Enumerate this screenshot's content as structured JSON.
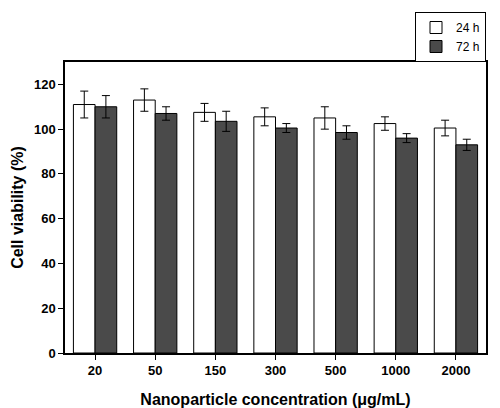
{
  "chart_data": {
    "type": "bar",
    "x_label": "Nanoparticle concentration (μg/mL)",
    "y_label": "Cell viability (%)",
    "categories": [
      "20",
      "50",
      "150",
      "300",
      "500",
      "1000",
      "2000"
    ],
    "series": [
      {
        "name": "24 h",
        "color": "#ffffff",
        "values": [
          111,
          113,
          107.5,
          105.5,
          105,
          102.5,
          100.5
        ],
        "error": [
          6,
          5,
          4,
          4,
          5,
          3,
          3.5
        ]
      },
      {
        "name": "72 h",
        "color": "#4a4a4a",
        "values": [
          110,
          107,
          103.5,
          100.5,
          98.5,
          96,
          93
        ],
        "error": [
          5,
          3,
          4.5,
          2,
          3,
          2,
          2.5
        ]
      }
    ],
    "ylim": [
      0,
      130
    ],
    "yticks": [
      0,
      20,
      40,
      60,
      80,
      100,
      120
    ],
    "grid": false,
    "legend": "top right"
  }
}
